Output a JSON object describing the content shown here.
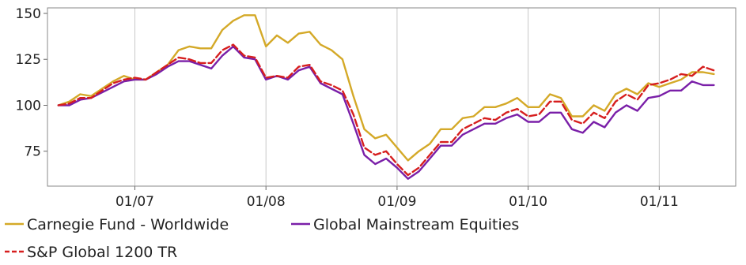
{
  "chart_data": {
    "type": "line",
    "title": "",
    "xlabel": "",
    "ylabel": "",
    "ylim": [
      56,
      153
    ],
    "xlim": [
      "2006-05",
      "2011-08"
    ],
    "yticks": [
      75,
      100,
      125,
      150
    ],
    "xticks": [
      {
        "label": "01/07",
        "date": "2007-01"
      },
      {
        "label": "01/08",
        "date": "2008-01"
      },
      {
        "label": "01/09",
        "date": "2009-01"
      },
      {
        "label": "01/10",
        "date": "2010-01"
      },
      {
        "label": "01/11",
        "date": "2011-01"
      }
    ],
    "grid": "vertical",
    "legend_position": "bottom",
    "x": [
      "2006-06",
      "2006-07",
      "2006-08",
      "2006-09",
      "2006-10",
      "2006-11",
      "2006-12",
      "2007-01",
      "2007-02",
      "2007-03",
      "2007-04",
      "2007-05",
      "2007-06",
      "2007-07",
      "2007-08",
      "2007-09",
      "2007-10",
      "2007-11",
      "2007-12",
      "2008-01",
      "2008-02",
      "2008-03",
      "2008-04",
      "2008-05",
      "2008-06",
      "2008-07",
      "2008-08",
      "2008-09",
      "2008-10",
      "2008-11",
      "2008-12",
      "2009-01",
      "2009-02",
      "2009-03",
      "2009-04",
      "2009-05",
      "2009-06",
      "2009-07",
      "2009-08",
      "2009-09",
      "2009-10",
      "2009-11",
      "2009-12",
      "2010-01",
      "2010-02",
      "2010-03",
      "2010-04",
      "2010-05",
      "2010-06",
      "2010-07",
      "2010-08",
      "2010-09",
      "2010-10",
      "2010-11",
      "2010-12",
      "2011-01",
      "2011-02",
      "2011-03",
      "2011-04",
      "2011-05",
      "2011-06"
    ],
    "series": [
      {
        "name": "Carnegie Fund - Worldwide",
        "color": "#d4a928",
        "dash": "solid",
        "values": [
          100,
          102,
          106,
          105,
          109,
          113,
          116,
          114,
          114,
          118,
          122,
          130,
          132,
          131,
          131,
          141,
          146,
          149,
          149,
          132,
          138,
          134,
          139,
          140,
          133,
          130,
          125,
          105,
          87,
          82,
          84,
          77,
          70,
          75,
          79,
          87,
          87,
          93,
          94,
          99,
          99,
          101,
          104,
          99,
          99,
          106,
          104,
          94,
          94,
          100,
          97,
          106,
          109,
          106,
          112,
          110,
          112,
          114,
          118,
          118,
          117
        ]
      },
      {
        "name": "Global Mainstream Equities",
        "color": "#7a1fa8",
        "dash": "solid",
        "values": [
          100,
          100,
          103,
          104,
          107,
          110,
          113,
          114,
          114,
          117,
          121,
          124,
          124,
          122,
          120,
          127,
          132,
          126,
          125,
          114,
          116,
          114,
          119,
          121,
          112,
          109,
          106,
          90,
          73,
          68,
          71,
          66,
          60,
          64,
          71,
          78,
          78,
          84,
          87,
          90,
          90,
          93,
          95,
          91,
          91,
          96,
          96,
          87,
          85,
          91,
          88,
          96,
          100,
          97,
          104,
          105,
          108,
          108,
          113,
          111,
          111
        ]
      },
      {
        "name": "S&P Global 1200 TR",
        "color": "#d61e1e",
        "dash": "dashed",
        "values": [
          100,
          101,
          104,
          104,
          108,
          112,
          114,
          115,
          114,
          118,
          122,
          126,
          125,
          123,
          123,
          130,
          133,
          127,
          126,
          115,
          116,
          115,
          121,
          122,
          113,
          111,
          108,
          95,
          77,
          73,
          75,
          68,
          62,
          66,
          73,
          80,
          80,
          87,
          90,
          93,
          92,
          96,
          98,
          94,
          95,
          102,
          102,
          92,
          90,
          96,
          93,
          102,
          106,
          103,
          111,
          112,
          114,
          117,
          116,
          121,
          119
        ]
      }
    ]
  }
}
